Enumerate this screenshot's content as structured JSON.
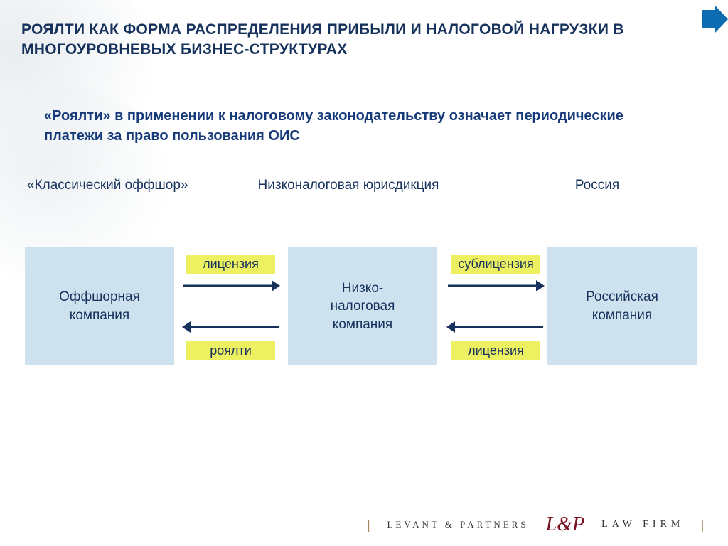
{
  "background": {
    "circle1_color": "#e9edf0",
    "circle2_color": "#eef2f4"
  },
  "top_arrow_color": "#0c6bb1",
  "title": {
    "text": "Роялти как форма распределения прибыли и налоговой нагрузки в многоуровневых бизнес-структурах",
    "color": "#16325c",
    "fontsize": 21
  },
  "subtitle": {
    "text": "«Роялти» в применении к налоговому законодательству означает периодические платежи за право пользования ОИС",
    "color": "#163a7a",
    "fontsize": 20
  },
  "columns": {
    "labels": [
      "«Классический оффшор»",
      "Низконалоговая юрисдикция",
      "Россия"
    ],
    "label_color": "#16325c",
    "label_fontsize": 19
  },
  "nodes": [
    {
      "label": "Оффшорная\nкомпания"
    },
    {
      "label": "Низко-\nналоговая\nкомпания"
    },
    {
      "label": "Российская\nкомпания"
    }
  ],
  "node_style": {
    "bg_color": "#cde1ef",
    "text_color": "#16325c",
    "fontsize": 19
  },
  "tags": [
    {
      "label": "лицензия"
    },
    {
      "label": "сублицензия"
    },
    {
      "label": "роялти"
    },
    {
      "label": "лицензия"
    }
  ],
  "tag_style": {
    "bg_color": "#edf060",
    "text_color": "#16325c",
    "fontsize": 18
  },
  "arrows": [
    {
      "dir": "right"
    },
    {
      "dir": "right"
    },
    {
      "dir": "left"
    },
    {
      "dir": "left"
    }
  ],
  "arrow_color": "#16325c",
  "footer": {
    "left": "LEVANT & PARTNERS",
    "right": "LAW   FIRM"
  }
}
